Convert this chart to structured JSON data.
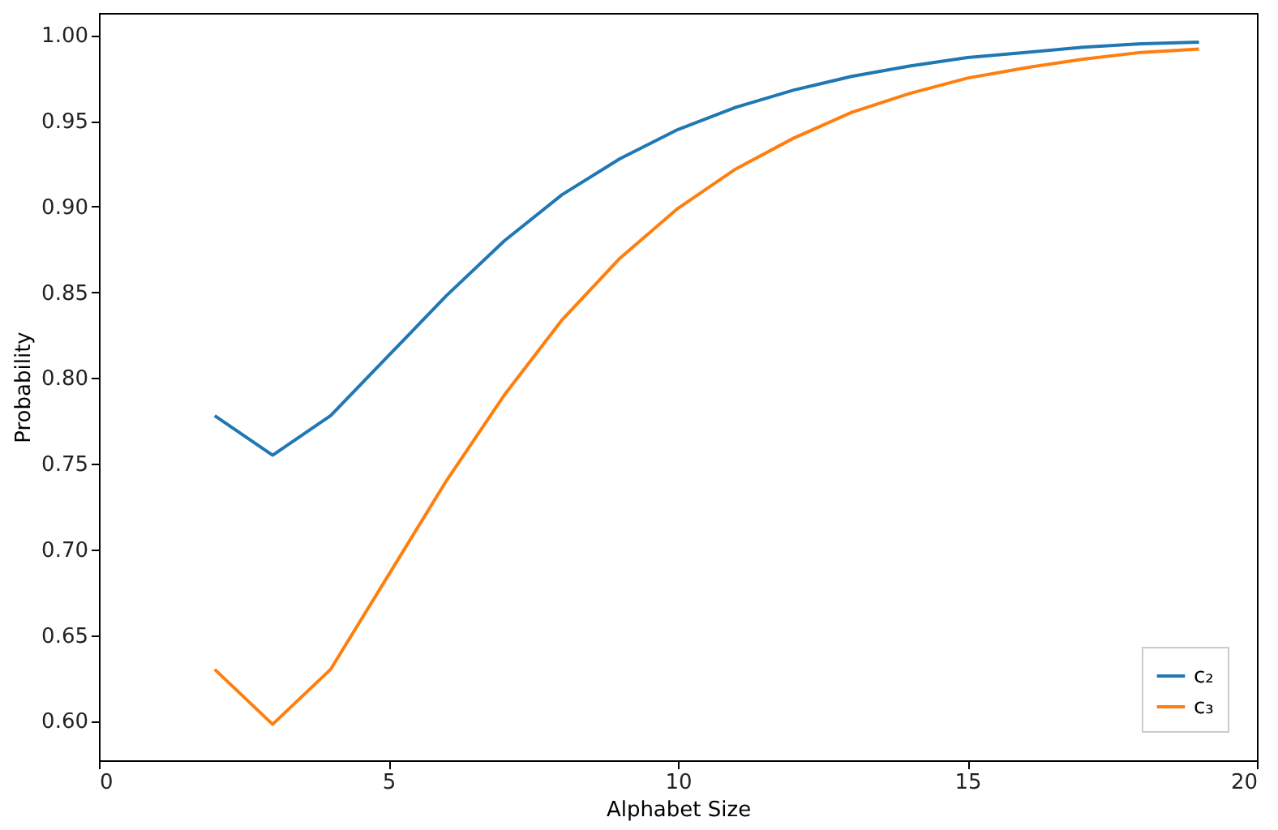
{
  "chart_data": {
    "type": "line",
    "xlabel": "Alphabet Size",
    "ylabel": "Probability",
    "x": [
      2,
      3,
      4,
      5,
      6,
      7,
      8,
      9,
      10,
      11,
      12,
      13,
      14,
      15,
      16,
      17,
      18,
      19
    ],
    "series": [
      {
        "name": "c₂",
        "color": "#1f77b4",
        "values": [
          0.778,
          0.755,
          0.778,
          0.813,
          0.848,
          0.88,
          0.907,
          0.928,
          0.945,
          0.958,
          0.968,
          0.976,
          0.982,
          0.987,
          0.99,
          0.993,
          0.995,
          0.996
        ]
      },
      {
        "name": "c₃",
        "color": "#ff7f0e",
        "values": [
          0.63,
          0.598,
          0.63,
          0.685,
          0.74,
          0.79,
          0.834,
          0.87,
          0.899,
          0.922,
          0.94,
          0.955,
          0.966,
          0.975,
          0.981,
          0.986,
          0.99,
          0.992
        ]
      }
    ],
    "xlim": [
      0,
      20
    ],
    "xticks": [
      0,
      5,
      10,
      15,
      20
    ],
    "ylim": [
      0.577,
      1.013
    ],
    "yticks": [
      {
        "value": 0.6,
        "label": "0.60"
      },
      {
        "value": 0.65,
        "label": "0.65"
      },
      {
        "value": 0.7,
        "label": "0.70"
      },
      {
        "value": 0.75,
        "label": "0.75"
      },
      {
        "value": 0.8,
        "label": "0.80"
      },
      {
        "value": 0.85,
        "label": "0.85"
      },
      {
        "value": 0.9,
        "label": "0.90"
      },
      {
        "value": 0.95,
        "label": "0.95"
      },
      {
        "value": 1.0,
        "label": "1.00"
      }
    ],
    "grid": false,
    "legend": "bottom right",
    "marker": "none",
    "line_style": "solid"
  }
}
